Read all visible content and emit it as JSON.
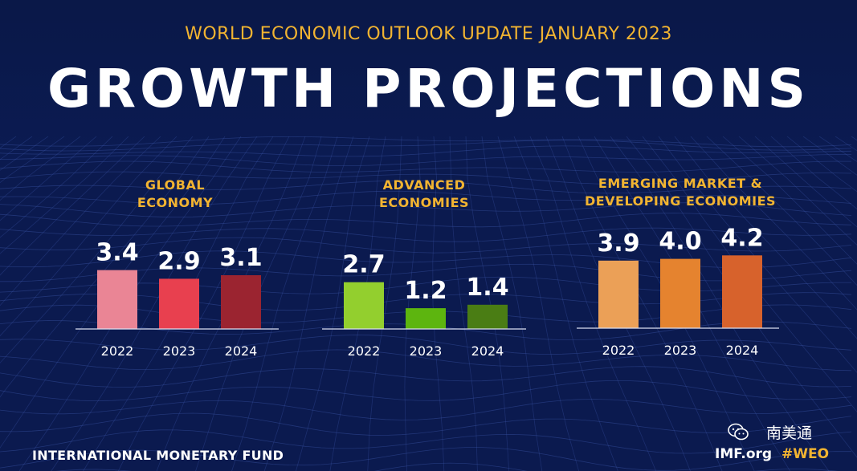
{
  "header": {
    "supertitle": "WORLD ECONOMIC OUTLOOK UPDATE JANUARY 2023",
    "title": "GROWTH PROJECTIONS"
  },
  "chart_data": [
    {
      "type": "bar",
      "title_lines": [
        "GLOBAL",
        "ECONOMY"
      ],
      "categories": [
        "2022",
        "2023",
        "2024"
      ],
      "values": [
        3.4,
        2.9,
        3.1
      ],
      "colors": [
        "#ea8595",
        "#e8404f",
        "#9b2430"
      ],
      "ylim": [
        0,
        4.2
      ],
      "grid": false
    },
    {
      "type": "bar",
      "title_lines": [
        "ADVANCED",
        "ECONOMIES"
      ],
      "categories": [
        "2022",
        "2023",
        "2024"
      ],
      "values": [
        2.7,
        1.2,
        1.4
      ],
      "colors": [
        "#93cf2e",
        "#5db50f",
        "#4a7d14"
      ],
      "ylim": [
        0,
        4.2
      ],
      "grid": false
    },
    {
      "type": "bar",
      "title_lines": [
        "EMERGING MARKET &",
        "DEVELOPING ECONOMIES"
      ],
      "categories": [
        "2022",
        "2023",
        "2024"
      ],
      "values": [
        3.9,
        4.0,
        4.2
      ],
      "colors": [
        "#eba057",
        "#e5832f",
        "#d7622c"
      ],
      "ylim": [
        0,
        4.2
      ],
      "grid": false
    }
  ],
  "footer": {
    "organization": "INTERNATIONAL MONETARY FUND",
    "site": "IMF.org",
    "hashtag": "#WEO"
  },
  "watermark": {
    "text": "南美通",
    "icon": "wechat-icon"
  }
}
